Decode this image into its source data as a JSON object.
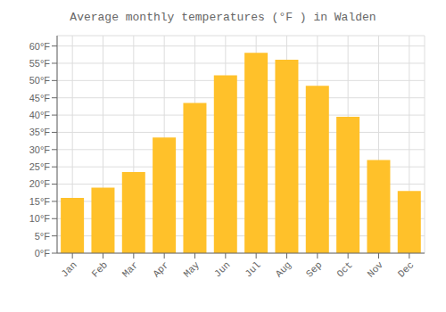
{
  "chart_data": {
    "type": "bar",
    "title": "Average monthly temperatures (°F ) in Walden",
    "categories": [
      "Jan",
      "Feb",
      "Mar",
      "Apr",
      "May",
      "Jun",
      "Jul",
      "Aug",
      "Sep",
      "Oct",
      "Nov",
      "Dec"
    ],
    "values": [
      16,
      19,
      23.5,
      33.5,
      43.5,
      51.5,
      58,
      56,
      48.5,
      39.5,
      27,
      18
    ],
    "color": "#FFC12A",
    "ylim": [
      0,
      63
    ],
    "yticks": [
      {
        "value": 0,
        "label": "0°F"
      },
      {
        "value": 5,
        "label": "5°F"
      },
      {
        "value": 10,
        "label": "10°F"
      },
      {
        "value": 15,
        "label": "15°F"
      },
      {
        "value": 20,
        "label": "20°F"
      },
      {
        "value": 25,
        "label": "25°F"
      },
      {
        "value": 30,
        "label": "30°F"
      },
      {
        "value": 35,
        "label": "35°F"
      },
      {
        "value": 40,
        "label": "40°F"
      },
      {
        "value": 45,
        "label": "45°F"
      },
      {
        "value": 50,
        "label": "50°F"
      },
      {
        "value": 55,
        "label": "55°F"
      },
      {
        "value": 60,
        "label": "60°F"
      }
    ],
    "grid": true
  }
}
